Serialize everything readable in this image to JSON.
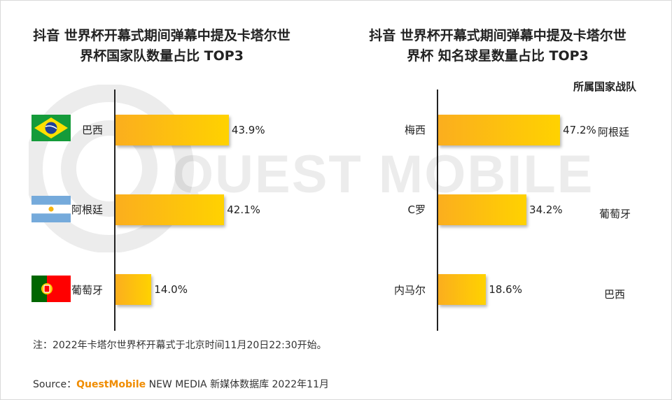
{
  "watermark": "QUEST MOBILE",
  "colors": {
    "bar_start": "#fbae1e",
    "bar_end": "#ffd200",
    "brand": "#f08c00"
  },
  "chart_data": [
    {
      "type": "bar",
      "orientation": "horizontal",
      "title_line1": "抖音 世界杯开幕式期间弹幕中提及卡塔尔世",
      "title_line2": "界杯国家队数量占比 TOP3",
      "categories": [
        "巴西",
        "阿根廷",
        "葡萄牙"
      ],
      "values": [
        43.9,
        42.1,
        14.0
      ],
      "value_labels": [
        "43.9%",
        "42.1%",
        "14.0%"
      ],
      "category_icons": [
        "brazil-flag",
        "argentina-flag",
        "portugal-flag"
      ]
    },
    {
      "type": "bar",
      "orientation": "horizontal",
      "title_line1": "抖音 世界杯开幕式期间弹幕中提及卡塔尔世",
      "title_line2": "界杯 知名球星数量占比 TOP3",
      "categories": [
        "梅西",
        "C罗",
        "内马尔"
      ],
      "values": [
        47.2,
        34.2,
        18.6
      ],
      "value_labels": [
        "47.2%",
        "34.2%",
        "18.6%"
      ],
      "side_header": "所属国家战队",
      "teams": [
        "阿根廷",
        "葡萄牙",
        "巴西"
      ]
    }
  ],
  "footnote": "注：2022年卡塔尔世界杯开幕式于北京时间11月20日22:30开始。",
  "source": {
    "prefix": "Source：",
    "brand": "QuestMobile",
    "suffix": " NEW MEDIA 新媒体数据库 2022年11月"
  }
}
